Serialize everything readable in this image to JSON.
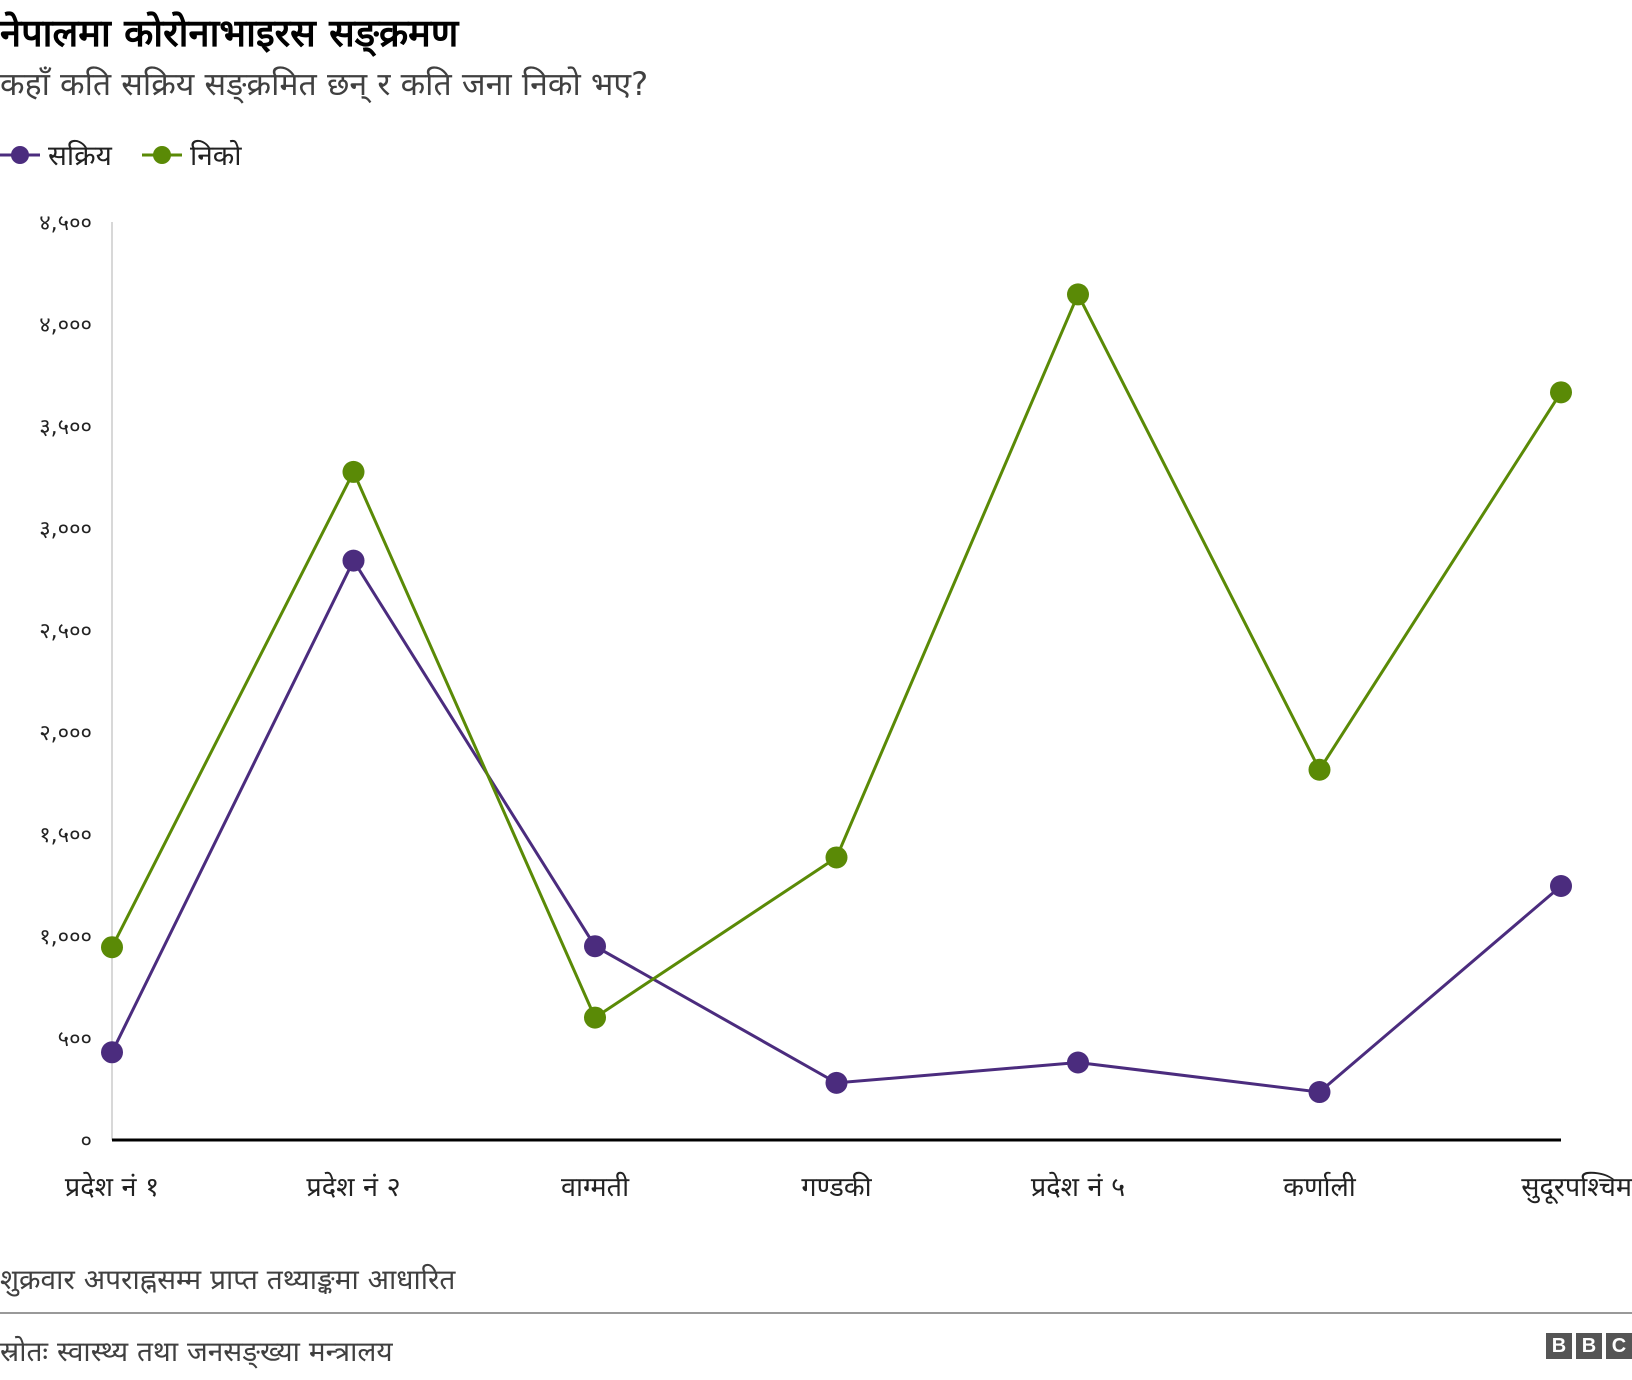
{
  "header": {
    "title": "नेपालमा कोरोनाभाइरस सङ्क्रमण",
    "subtitle": "कहाँ कति सक्रिय सङ्क्रमित छन् र कति जना निको भए?"
  },
  "footer": {
    "note": "शुक्रवार अपराह्नसम्म प्राप्त तथ्याङ्कमा आधारित",
    "source": "स्रोतः स्वास्थ्य तथा जनसङ्ख्या मन्त्रालय",
    "logo": [
      "B",
      "B",
      "C"
    ]
  },
  "chart_data": {
    "type": "line",
    "title": "नेपालमा कोरोनाभाइरस सङ्क्रमण",
    "categories": [
      "प्रदेश नं १",
      "प्रदेश नं २",
      "वाग्मती",
      "गण्डकी",
      "प्रदेश नं ५",
      "कर्णाली",
      "सुदूरपश्चिम"
    ],
    "series": [
      {
        "name": "सक्रिय",
        "color": "#4b2c7e",
        "values": [
          430,
          2840,
          950,
          280,
          380,
          235,
          1245
        ]
      },
      {
        "name": "निको",
        "color": "#5a8a06",
        "values": [
          945,
          3275,
          600,
          1385,
          4145,
          1815,
          3665
        ]
      }
    ],
    "ylim": [
      0,
      4500
    ],
    "yticks": [
      0,
      500,
      1000,
      1500,
      2000,
      2500,
      3000,
      3500,
      4000,
      4500
    ],
    "ytick_labels": [
      "०",
      "५००",
      "१,०००",
      "१,५००",
      "२,०००",
      "२,५००",
      "३,०००",
      "३,५००",
      "४,०००",
      "४,५००"
    ],
    "grid": false,
    "legend": "top-left"
  }
}
